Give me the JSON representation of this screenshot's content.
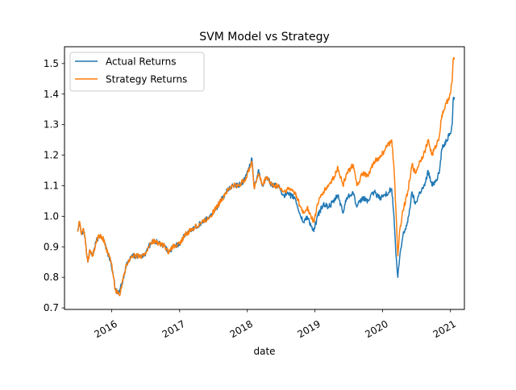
{
  "chart_data": {
    "type": "line",
    "title": "SVM Model vs Strategy",
    "xlabel": "date",
    "ylabel": "",
    "grid": false,
    "legend_position": "upper-left",
    "x_ticks": [
      "2016",
      "2017",
      "2018",
      "2019",
      "2020",
      "2021"
    ],
    "y_ticks": [
      "0.7",
      "0.8",
      "0.9",
      "1.0",
      "1.1",
      "1.2",
      "1.3",
      "1.4",
      "1.5"
    ],
    "xlim": [
      "2015-04-21",
      "2021-03-17"
    ],
    "ylim": [
      0.695,
      1.555
    ],
    "series": [
      {
        "name": "Actual Returns",
        "color": "#1f77b4",
        "points": [
          [
            "2015-07-01",
            0.95
          ],
          [
            "2015-07-08",
            0.98
          ],
          [
            "2015-07-15",
            0.97
          ],
          [
            "2015-07-22",
            0.94
          ],
          [
            "2015-08-01",
            0.96
          ],
          [
            "2015-08-10",
            0.93
          ],
          [
            "2015-08-20",
            0.87
          ],
          [
            "2015-08-25",
            0.85
          ],
          [
            "2015-09-05",
            0.89
          ],
          [
            "2015-09-20",
            0.87
          ],
          [
            "2015-10-10",
            0.92
          ],
          [
            "2015-11-01",
            0.94
          ],
          [
            "2015-11-20",
            0.92
          ],
          [
            "2015-12-10",
            0.88
          ],
          [
            "2015-12-28",
            0.85
          ],
          [
            "2016-01-10",
            0.8
          ],
          [
            "2016-01-20",
            0.76
          ],
          [
            "2016-02-11",
            0.75
          ],
          [
            "2016-03-01",
            0.79
          ],
          [
            "2016-03-20",
            0.84
          ],
          [
            "2016-04-15",
            0.87
          ],
          [
            "2016-06-01",
            0.87
          ],
          [
            "2016-06-24",
            0.87
          ],
          [
            "2016-07-15",
            0.9
          ],
          [
            "2016-08-15",
            0.92
          ],
          [
            "2016-09-15",
            0.91
          ],
          [
            "2016-10-15",
            0.9
          ],
          [
            "2016-11-04",
            0.88
          ],
          [
            "2016-11-25",
            0.9
          ],
          [
            "2016-12-31",
            0.91
          ],
          [
            "2017-02-01",
            0.94
          ],
          [
            "2017-03-15",
            0.96
          ],
          [
            "2017-05-01",
            0.98
          ],
          [
            "2017-06-15",
            1.0
          ],
          [
            "2017-08-01",
            1.04
          ],
          [
            "2017-09-10",
            1.08
          ],
          [
            "2017-10-15",
            1.1
          ],
          [
            "2017-11-15",
            1.1
          ],
          [
            "2017-12-20",
            1.12
          ],
          [
            "2018-01-26",
            1.19
          ],
          [
            "2018-02-08",
            1.09
          ],
          [
            "2018-03-01",
            1.15
          ],
          [
            "2018-03-25",
            1.1
          ],
          [
            "2018-04-15",
            1.13
          ],
          [
            "2018-05-15",
            1.1
          ],
          [
            "2018-06-15",
            1.1
          ],
          [
            "2018-07-15",
            1.07
          ],
          [
            "2018-08-15",
            1.07
          ],
          [
            "2018-09-15",
            1.06
          ],
          [
            "2018-10-15",
            1.0
          ],
          [
            "2018-11-01",
            0.98
          ],
          [
            "2018-11-20",
            1.0
          ],
          [
            "2018-12-10",
            0.97
          ],
          [
            "2018-12-26",
            0.95
          ],
          [
            "2019-01-15",
            1.0
          ],
          [
            "2019-02-15",
            1.04
          ],
          [
            "2019-03-15",
            1.03
          ],
          [
            "2019-04-15",
            1.05
          ],
          [
            "2019-05-05",
            1.07
          ],
          [
            "2019-06-01",
            1.01
          ],
          [
            "2019-06-20",
            1.06
          ],
          [
            "2019-07-25",
            1.08
          ],
          [
            "2019-08-15",
            1.03
          ],
          [
            "2019-09-15",
            1.06
          ],
          [
            "2019-10-15",
            1.05
          ],
          [
            "2019-11-15",
            1.08
          ],
          [
            "2019-12-15",
            1.06
          ],
          [
            "2020-01-15",
            1.07
          ],
          [
            "2020-02-19",
            1.09
          ],
          [
            "2020-03-02",
            1.0
          ],
          [
            "2020-03-12",
            0.88
          ],
          [
            "2020-03-23",
            0.8
          ],
          [
            "2020-04-01",
            0.86
          ],
          [
            "2020-04-20",
            0.94
          ],
          [
            "2020-05-15",
            0.98
          ],
          [
            "2020-06-08",
            1.08
          ],
          [
            "2020-06-25",
            1.04
          ],
          [
            "2020-07-20",
            1.08
          ],
          [
            "2020-08-15",
            1.1
          ],
          [
            "2020-09-02",
            1.15
          ],
          [
            "2020-09-23",
            1.1
          ],
          [
            "2020-10-15",
            1.12
          ],
          [
            "2020-11-01",
            1.14
          ],
          [
            "2020-11-15",
            1.22
          ],
          [
            "2020-12-10",
            1.25
          ],
          [
            "2020-12-31",
            1.27
          ],
          [
            "2021-01-10",
            1.3
          ],
          [
            "2021-01-15",
            1.38
          ],
          [
            "2021-01-22",
            1.39
          ]
        ]
      },
      {
        "name": "Strategy Returns",
        "color": "#ff7f0e",
        "points": [
          [
            "2015-07-01",
            0.95
          ],
          [
            "2015-07-08",
            0.98
          ],
          [
            "2015-07-15",
            0.97
          ],
          [
            "2015-07-22",
            0.94
          ],
          [
            "2015-08-01",
            0.96
          ],
          [
            "2015-08-10",
            0.93
          ],
          [
            "2015-08-20",
            0.87
          ],
          [
            "2015-08-25",
            0.85
          ],
          [
            "2015-09-05",
            0.89
          ],
          [
            "2015-09-20",
            0.87
          ],
          [
            "2015-10-10",
            0.92
          ],
          [
            "2015-11-01",
            0.94
          ],
          [
            "2015-11-20",
            0.92
          ],
          [
            "2015-12-10",
            0.88
          ],
          [
            "2015-12-28",
            0.85
          ],
          [
            "2016-01-10",
            0.8
          ],
          [
            "2016-01-20",
            0.76
          ],
          [
            "2016-02-11",
            0.74
          ],
          [
            "2016-03-01",
            0.79
          ],
          [
            "2016-03-20",
            0.84
          ],
          [
            "2016-04-15",
            0.87
          ],
          [
            "2016-06-01",
            0.87
          ],
          [
            "2016-06-24",
            0.87
          ],
          [
            "2016-07-15",
            0.9
          ],
          [
            "2016-08-15",
            0.92
          ],
          [
            "2016-09-15",
            0.91
          ],
          [
            "2016-10-15",
            0.9
          ],
          [
            "2016-11-04",
            0.88
          ],
          [
            "2016-11-25",
            0.9
          ],
          [
            "2016-12-31",
            0.91
          ],
          [
            "2017-02-01",
            0.94
          ],
          [
            "2017-03-15",
            0.96
          ],
          [
            "2017-05-01",
            0.98
          ],
          [
            "2017-06-15",
            1.0
          ],
          [
            "2017-08-01",
            1.04
          ],
          [
            "2017-09-10",
            1.08
          ],
          [
            "2017-10-15",
            1.1
          ],
          [
            "2017-11-15",
            1.1
          ],
          [
            "2017-12-20",
            1.12
          ],
          [
            "2018-01-26",
            1.18
          ],
          [
            "2018-02-08",
            1.09
          ],
          [
            "2018-03-01",
            1.14
          ],
          [
            "2018-03-25",
            1.1
          ],
          [
            "2018-04-15",
            1.13
          ],
          [
            "2018-05-15",
            1.1
          ],
          [
            "2018-06-15",
            1.1
          ],
          [
            "2018-07-15",
            1.08
          ],
          [
            "2018-08-15",
            1.09
          ],
          [
            "2018-09-15",
            1.08
          ],
          [
            "2018-10-15",
            1.03
          ],
          [
            "2018-11-01",
            1.01
          ],
          [
            "2018-11-20",
            1.03
          ],
          [
            "2018-12-10",
            1.0
          ],
          [
            "2018-12-26",
            0.98
          ],
          [
            "2019-01-15",
            1.04
          ],
          [
            "2019-02-15",
            1.08
          ],
          [
            "2019-03-15",
            1.1
          ],
          [
            "2019-04-15",
            1.13
          ],
          [
            "2019-05-05",
            1.16
          ],
          [
            "2019-06-01",
            1.1
          ],
          [
            "2019-06-20",
            1.14
          ],
          [
            "2019-07-25",
            1.17
          ],
          [
            "2019-08-15",
            1.1
          ],
          [
            "2019-09-15",
            1.14
          ],
          [
            "2019-10-15",
            1.13
          ],
          [
            "2019-11-15",
            1.18
          ],
          [
            "2019-12-15",
            1.19
          ],
          [
            "2020-01-15",
            1.22
          ],
          [
            "2020-02-19",
            1.25
          ],
          [
            "2020-03-02",
            1.16
          ],
          [
            "2020-03-12",
            1.03
          ],
          [
            "2020-03-23",
            0.87
          ],
          [
            "2020-04-01",
            0.95
          ],
          [
            "2020-04-20",
            1.02
          ],
          [
            "2020-05-15",
            1.08
          ],
          [
            "2020-06-08",
            1.17
          ],
          [
            "2020-06-25",
            1.14
          ],
          [
            "2020-07-20",
            1.18
          ],
          [
            "2020-08-15",
            1.21
          ],
          [
            "2020-09-02",
            1.25
          ],
          [
            "2020-09-23",
            1.2
          ],
          [
            "2020-10-15",
            1.23
          ],
          [
            "2020-11-01",
            1.26
          ],
          [
            "2020-11-15",
            1.33
          ],
          [
            "2020-12-10",
            1.37
          ],
          [
            "2020-12-31",
            1.4
          ],
          [
            "2021-01-10",
            1.44
          ],
          [
            "2021-01-15",
            1.51
          ],
          [
            "2021-01-22",
            1.52
          ]
        ]
      }
    ]
  }
}
